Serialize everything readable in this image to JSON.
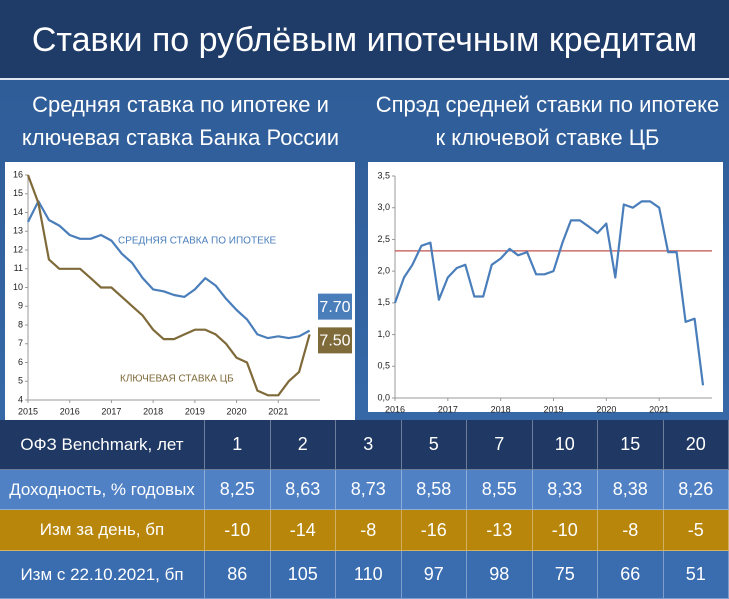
{
  "title": "Ставки по рублёвым ипотечным кредитам",
  "chart_data": [
    {
      "type": "line",
      "title": "Средняя ставка по ипотеке и ключевая ставка Банка России",
      "x": [
        2015,
        2015.25,
        2015.5,
        2015.75,
        2016,
        2016.25,
        2016.5,
        2016.75,
        2017,
        2017.25,
        2017.5,
        2017.75,
        2018,
        2018.25,
        2018.5,
        2018.75,
        2019,
        2019.25,
        2019.5,
        2019.75,
        2020,
        2020.25,
        2020.5,
        2020.75,
        2021,
        2021.25,
        2021.5,
        2021.75
      ],
      "series": [
        {
          "name": "СРЕДНЯЯ СТАВКА ПО ИПОТЕКЕ",
          "color": "#4a7ebb",
          "values": [
            13.5,
            14.6,
            13.6,
            13.3,
            12.8,
            12.6,
            12.6,
            12.8,
            12.5,
            11.8,
            11.3,
            10.5,
            9.9,
            9.8,
            9.6,
            9.5,
            9.9,
            10.5,
            10.1,
            9.4,
            8.8,
            8.3,
            7.5,
            7.3,
            7.4,
            7.3,
            7.4,
            7.7
          ],
          "value_labels": [
            null,
            null,
            null,
            null,
            null,
            null,
            null,
            null,
            null,
            null,
            null,
            null,
            null,
            null,
            null,
            null,
            null,
            null,
            null,
            null,
            null,
            null,
            null,
            null,
            null,
            null,
            null,
            "7.70"
          ]
        },
        {
          "name": "КЛЮЧЕВАЯ СТАВКА ЦБ",
          "color": "#7f6a3a",
          "values": [
            16,
            14.5,
            11.5,
            11,
            11,
            11,
            10.5,
            10,
            10,
            9.5,
            9,
            8.5,
            7.75,
            7.25,
            7.25,
            7.5,
            7.75,
            7.75,
            7.5,
            7,
            6.25,
            6,
            4.5,
            4.25,
            4.25,
            5,
            5.5,
            7.5
          ],
          "value_labels": [
            null,
            null,
            null,
            null,
            null,
            null,
            null,
            null,
            null,
            null,
            null,
            null,
            null,
            null,
            null,
            null,
            null,
            null,
            null,
            null,
            null,
            null,
            null,
            null,
            null,
            null,
            null,
            "7.50"
          ]
        }
      ],
      "xlim": [
        2015,
        2022
      ],
      "xticks": [
        2015,
        2016,
        2017,
        2018,
        2019,
        2020,
        2021
      ],
      "ylim": [
        4,
        16
      ],
      "yticks": [
        4,
        5,
        6,
        7,
        8,
        9,
        10,
        11,
        12,
        13,
        14,
        15,
        16
      ]
    },
    {
      "type": "line",
      "title": "Спрэд средней ставки по ипотеке к ключевой ставке ЦБ",
      "x": [
        2016,
        2016.17,
        2016.33,
        2016.5,
        2016.67,
        2016.83,
        2017,
        2017.17,
        2017.33,
        2017.5,
        2017.67,
        2017.83,
        2018,
        2018.17,
        2018.33,
        2018.5,
        2018.67,
        2018.83,
        2019,
        2019.17,
        2019.33,
        2019.5,
        2019.67,
        2019.83,
        2020,
        2020.17,
        2020.33,
        2020.5,
        2020.67,
        2020.83,
        2021,
        2021.17,
        2021.33,
        2021.5,
        2021.67,
        2021.83
      ],
      "series": [
        {
          "color": "#4a7ebb",
          "values": [
            1.5,
            1.9,
            2.1,
            2.4,
            2.45,
            1.55,
            1.9,
            2.05,
            2.1,
            1.6,
            1.6,
            2.1,
            2.2,
            2.35,
            2.25,
            2.3,
            1.95,
            1.95,
            2.0,
            2.45,
            2.8,
            2.8,
            2.7,
            2.6,
            2.75,
            1.9,
            3.05,
            3.0,
            3.1,
            3.1,
            3.0,
            2.3,
            2.3,
            1.2,
            1.25,
            0.2
          ]
        }
      ],
      "reference_line": {
        "value": 2.32,
        "color": "#c0504d"
      },
      "xlim": [
        2016,
        2022
      ],
      "xticks": [
        2016,
        2017,
        2018,
        2019,
        2020,
        2021
      ],
      "ylim": [
        0,
        3.5
      ],
      "yticks": [
        {
          "value": 0,
          "label": "0,0"
        },
        {
          "value": 0.5,
          "label": "0,5"
        },
        {
          "value": 1,
          "label": "1,0"
        },
        {
          "value": 1.5,
          "label": "1,5"
        },
        {
          "value": 2,
          "label": "2,0"
        },
        {
          "value": 2.5,
          "label": "2,5"
        },
        {
          "value": 3,
          "label": "3,0"
        },
        {
          "value": 3.5,
          "label": "3,5"
        }
      ]
    }
  ],
  "table": {
    "header": [
      "ОФЗ Benchmark, лет",
      "1",
      "2",
      "3",
      "5",
      "7",
      "10",
      "15",
      "20"
    ],
    "rows": [
      [
        "Доходность, % годовых",
        "8,25",
        "8,63",
        "8,73",
        "8,58",
        "8,55",
        "8,33",
        "8,38",
        "8,26"
      ],
      [
        "Изм за день, бп",
        "-10",
        "-14",
        "-8",
        "-16",
        "-13",
        "-10",
        "-8",
        "-5"
      ],
      [
        "Изм с 22.10.2021, бп",
        "86",
        "105",
        "110",
        "97",
        "98",
        "75",
        "66",
        "51"
      ]
    ]
  }
}
